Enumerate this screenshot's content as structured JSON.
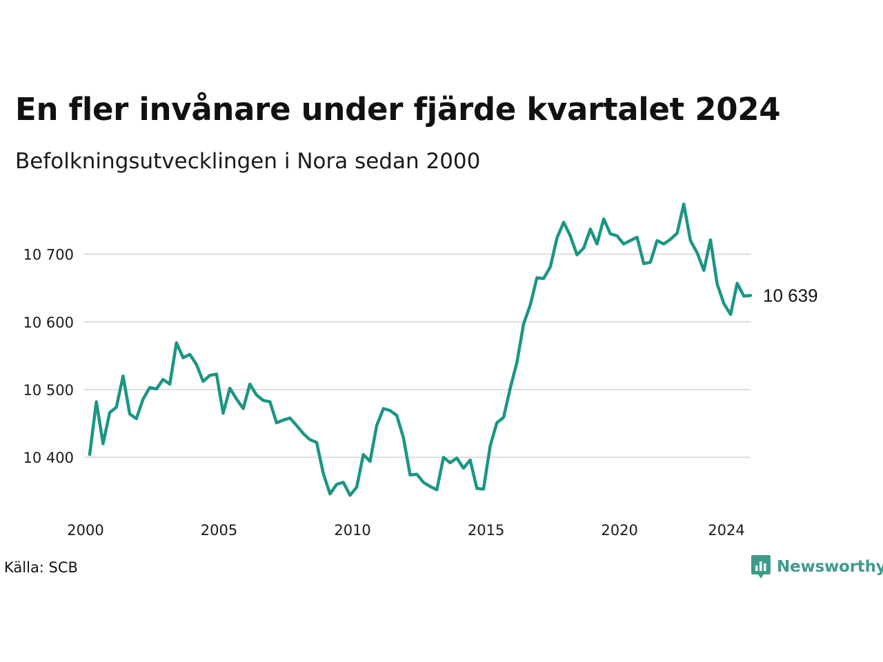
{
  "title": "En fler invånare under fjärde kvartalet 2024",
  "subtitle": "Befolkningsutvecklingen i Nora sedan 2000",
  "source": "Källa: SCB",
  "brand": {
    "name": "Newsworthy",
    "icon": "bar-chart-speech-bubble-icon"
  },
  "colors": {
    "line": "#1a9683",
    "grid": "#dddddd",
    "brand": "#3f9a8c"
  },
  "chart_data": {
    "type": "line",
    "title": "En fler invånare under fjärde kvartalet 2024",
    "subtitle": "Befolkningsutvecklingen i Nora sedan 2000",
    "x_ticks": [
      {
        "value": 2000,
        "label": "2000"
      },
      {
        "value": 2005,
        "label": "2005"
      },
      {
        "value": 2010,
        "label": "2010"
      },
      {
        "value": 2015,
        "label": "2015"
      },
      {
        "value": 2020,
        "label": "2020"
      },
      {
        "value": 2024,
        "label": "2024"
      }
    ],
    "y_ticks": [
      {
        "value": 10400,
        "label": "10 400"
      },
      {
        "value": 10500,
        "label": "10 500"
      },
      {
        "value": 10600,
        "label": "10 600"
      },
      {
        "value": 10700,
        "label": "10 700"
      }
    ],
    "xlim": [
      2000,
      2024.75
    ],
    "ylim": [
      10335,
      10780
    ],
    "grid": true,
    "end_label": "10 639",
    "series": [
      {
        "values": [
          [
            2000.0,
            10404
          ],
          [
            2000.25,
            10482
          ],
          [
            2000.5,
            10420
          ],
          [
            2000.75,
            10466
          ],
          [
            2001.0,
            10474
          ],
          [
            2001.25,
            10520
          ],
          [
            2001.5,
            10464
          ],
          [
            2001.75,
            10457
          ],
          [
            2002.0,
            10486
          ],
          [
            2002.25,
            10503
          ],
          [
            2002.5,
            10501
          ],
          [
            2002.75,
            10515
          ],
          [
            2003.0,
            10508
          ],
          [
            2003.25,
            10569
          ],
          [
            2003.5,
            10547
          ],
          [
            2003.75,
            10552
          ],
          [
            2004.0,
            10537
          ],
          [
            2004.25,
            10512
          ],
          [
            2004.5,
            10521
          ],
          [
            2004.75,
            10523
          ],
          [
            2005.0,
            10465
          ],
          [
            2005.25,
            10502
          ],
          [
            2005.5,
            10486
          ],
          [
            2005.75,
            10472
          ],
          [
            2006.0,
            10508
          ],
          [
            2006.25,
            10492
          ],
          [
            2006.5,
            10484
          ],
          [
            2006.75,
            10482
          ],
          [
            2007.0,
            10451
          ],
          [
            2007.25,
            10455
          ],
          [
            2007.5,
            10458
          ],
          [
            2007.75,
            10447
          ],
          [
            2008.0,
            10435
          ],
          [
            2008.25,
            10426
          ],
          [
            2008.5,
            10422
          ],
          [
            2008.75,
            10376
          ],
          [
            2009.0,
            10346
          ],
          [
            2009.25,
            10360
          ],
          [
            2009.5,
            10363
          ],
          [
            2009.75,
            10344
          ],
          [
            2010.0,
            10356
          ],
          [
            2010.25,
            10404
          ],
          [
            2010.5,
            10394
          ],
          [
            2010.75,
            10447
          ],
          [
            2011.0,
            10472
          ],
          [
            2011.25,
            10469
          ],
          [
            2011.5,
            10462
          ],
          [
            2011.75,
            10429
          ],
          [
            2012.0,
            10374
          ],
          [
            2012.25,
            10375
          ],
          [
            2012.5,
            10363
          ],
          [
            2012.75,
            10357
          ],
          [
            2013.0,
            10352
          ],
          [
            2013.25,
            10400
          ],
          [
            2013.5,
            10392
          ],
          [
            2013.75,
            10399
          ],
          [
            2014.0,
            10384
          ],
          [
            2014.25,
            10396
          ],
          [
            2014.5,
            10354
          ],
          [
            2014.75,
            10353
          ],
          [
            2015.0,
            10417
          ],
          [
            2015.25,
            10451
          ],
          [
            2015.5,
            10459
          ],
          [
            2015.75,
            10502
          ],
          [
            2016.0,
            10540
          ],
          [
            2016.25,
            10597
          ],
          [
            2016.5,
            10625
          ],
          [
            2016.75,
            10665
          ],
          [
            2017.0,
            10664
          ],
          [
            2017.25,
            10681
          ],
          [
            2017.5,
            10724
          ],
          [
            2017.75,
            10747
          ],
          [
            2018.0,
            10727
          ],
          [
            2018.25,
            10699
          ],
          [
            2018.5,
            10709
          ],
          [
            2018.75,
            10737
          ],
          [
            2019.0,
            10715
          ],
          [
            2019.25,
            10752
          ],
          [
            2019.5,
            10730
          ],
          [
            2019.75,
            10727
          ],
          [
            2020.0,
            10715
          ],
          [
            2020.25,
            10720
          ],
          [
            2020.5,
            10725
          ],
          [
            2020.75,
            10686
          ],
          [
            2021.0,
            10688
          ],
          [
            2021.25,
            10720
          ],
          [
            2021.5,
            10715
          ],
          [
            2021.75,
            10722
          ],
          [
            2022.0,
            10731
          ],
          [
            2022.25,
            10774
          ],
          [
            2022.5,
            10720
          ],
          [
            2022.75,
            10702
          ],
          [
            2023.0,
            10676
          ],
          [
            2023.25,
            10721
          ],
          [
            2023.5,
            10656
          ],
          [
            2023.75,
            10627
          ],
          [
            2024.0,
            10611
          ],
          [
            2024.25,
            10657
          ],
          [
            2024.5,
            10638
          ],
          [
            2024.75,
            10639
          ]
        ]
      }
    ]
  }
}
